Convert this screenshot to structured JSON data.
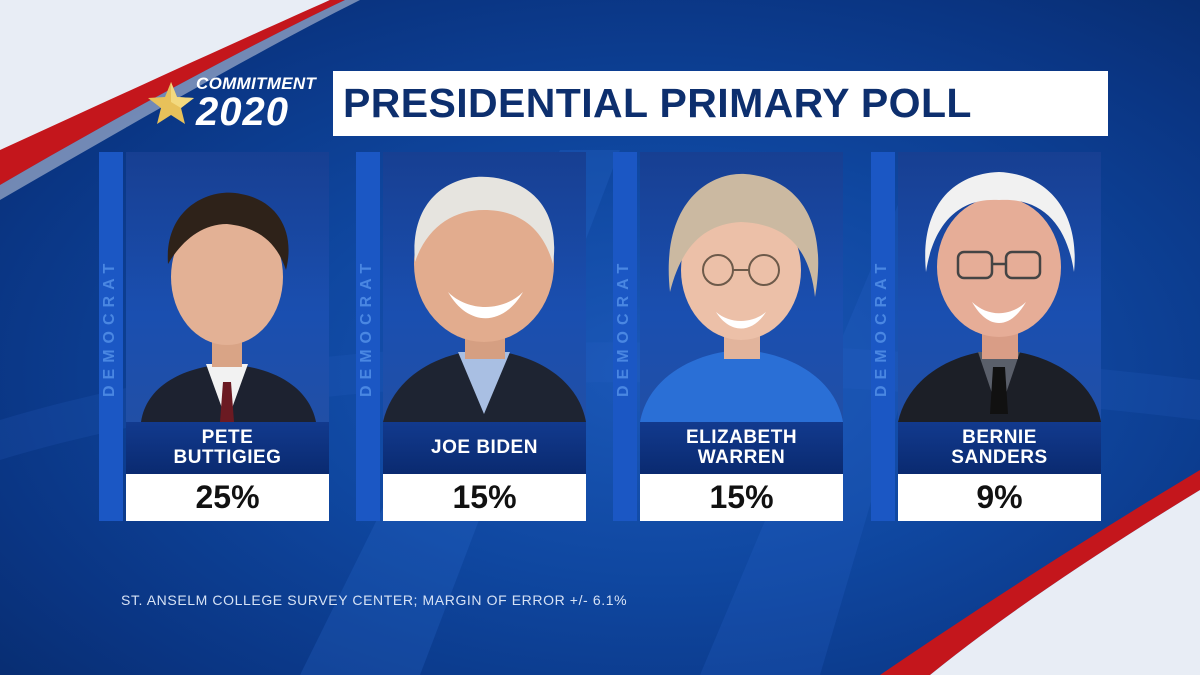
{
  "brand": {
    "line1": "COMMITMENT",
    "line2": "2020",
    "icon": "star-icon"
  },
  "title": "PRESIDENTIAL PRIMARY POLL",
  "candidates": [
    {
      "party": "DEMOCRAT",
      "name": "PETE\nBUTTIGIEG",
      "percent": "25%",
      "photo": "portrait-pete-buttigieg"
    },
    {
      "party": "DEMOCRAT",
      "name": "JOE BIDEN",
      "percent": "15%",
      "photo": "portrait-joe-biden"
    },
    {
      "party": "DEMOCRAT",
      "name": "ELIZABETH\nWARREN",
      "percent": "15%",
      "photo": "portrait-elizabeth-warren"
    },
    {
      "party": "DEMOCRAT",
      "name": "BERNIE\nSANDERS",
      "percent": "9%",
      "photo": "portrait-bernie-sanders"
    }
  ],
  "source": "ST. ANSELM COLLEGE SURVEY CENTER; MARGIN OF ERROR +/- 6.1%",
  "colors": {
    "background": "#0f47a0",
    "title_text": "#0d2f6e",
    "accent_red": "#c4161c",
    "party_strip": "#1b57c4"
  }
}
